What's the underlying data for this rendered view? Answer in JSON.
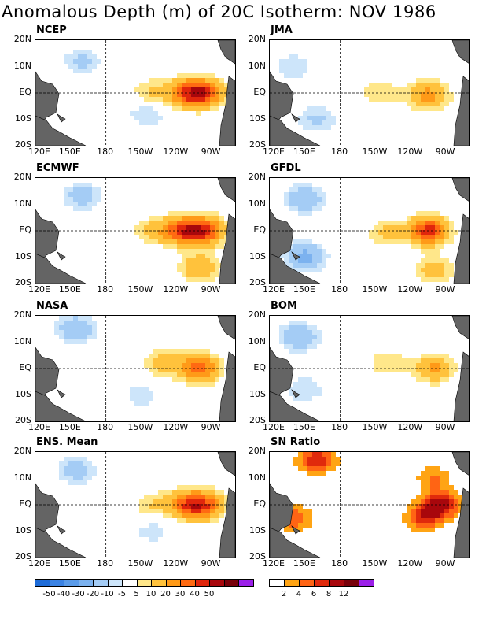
{
  "title": "Anomalous Depth (m) of 20C Isotherm: NOV 1986",
  "axes": {
    "y_ticks": [
      "20N",
      "10N",
      "EQ",
      "10S",
      "20S"
    ],
    "x_ticks": [
      "120E",
      "150E",
      "180",
      "150W",
      "120W",
      "90W"
    ]
  },
  "chart_data": [
    {
      "type": "heatmap",
      "panel_title": "NCEP",
      "hotspots": [
        {
          "lon": -110,
          "lat": 0,
          "value": 35
        },
        {
          "lon": -95,
          "lat": 0,
          "value": 35
        },
        {
          "lon": -140,
          "lat": 0,
          "value": 12
        },
        {
          "lon": 160,
          "lat": 12,
          "value": -12
        },
        {
          "lon": -145,
          "lat": -8,
          "value": -10
        }
      ]
    },
    {
      "type": "heatmap",
      "panel_title": "JMA",
      "hotspots": [
        {
          "lon": -105,
          "lat": -1,
          "value": 25
        },
        {
          "lon": -145,
          "lat": 0,
          "value": 10
        },
        {
          "lon": 160,
          "lat": -10,
          "value": -12
        },
        {
          "lon": 140,
          "lat": 10,
          "value": -10
        }
      ]
    },
    {
      "type": "heatmap",
      "panel_title": "ECMWF",
      "hotspots": [
        {
          "lon": -115,
          "lat": 0,
          "value": 40
        },
        {
          "lon": -95,
          "lat": 0,
          "value": 40
        },
        {
          "lon": -140,
          "lat": 0,
          "value": 12
        },
        {
          "lon": 160,
          "lat": 13,
          "value": -15
        },
        {
          "lon": -100,
          "lat": -14,
          "value": 20
        }
      ]
    },
    {
      "type": "heatmap",
      "panel_title": "GFDL",
      "hotspots": [
        {
          "lon": -105,
          "lat": 0,
          "value": 45
        },
        {
          "lon": -140,
          "lat": -1,
          "value": 12
        },
        {
          "lon": 150,
          "lat": 12,
          "value": -20
        },
        {
          "lon": 150,
          "lat": -10,
          "value": -25
        },
        {
          "lon": -100,
          "lat": -15,
          "value": 15
        }
      ]
    },
    {
      "type": "heatmap",
      "panel_title": "NASA",
      "hotspots": [
        {
          "lon": -100,
          "lat": 0,
          "value": 35
        },
        {
          "lon": -130,
          "lat": 2,
          "value": 15
        },
        {
          "lon": 155,
          "lat": 15,
          "value": -20
        },
        {
          "lon": -150,
          "lat": -10,
          "value": -8
        }
      ]
    },
    {
      "type": "heatmap",
      "panel_title": "BOM",
      "hotspots": [
        {
          "lon": -100,
          "lat": 0,
          "value": 22
        },
        {
          "lon": -140,
          "lat": 2,
          "value": 10
        },
        {
          "lon": 145,
          "lat": 12,
          "value": -20
        },
        {
          "lon": 150,
          "lat": -8,
          "value": -10
        }
      ]
    },
    {
      "type": "heatmap",
      "panel_title": "ENS. Mean",
      "hotspots": [
        {
          "lon": -110,
          "lat": 0,
          "value": 35
        },
        {
          "lon": -95,
          "lat": 0,
          "value": 30
        },
        {
          "lon": -140,
          "lat": 0,
          "value": 10
        },
        {
          "lon": 155,
          "lat": 13,
          "value": -15
        },
        {
          "lon": -140,
          "lat": -10,
          "value": -8
        }
      ]
    },
    {
      "type": "heatmap",
      "panel_title": "SN Ratio",
      "hotspots": [
        {
          "lon": 160,
          "lat": 17,
          "value": 8
        },
        {
          "lon": -95,
          "lat": 0,
          "value": 10
        },
        {
          "lon": -110,
          "lat": -5,
          "value": 6
        },
        {
          "lon": 140,
          "lat": -5,
          "value": 6
        },
        {
          "lon": -100,
          "lat": 10,
          "value": 4
        }
      ]
    }
  ],
  "colorbars": [
    {
      "labels": [
        "-50",
        "-40",
        "-30",
        "-20",
        "-10",
        "-5",
        "5",
        "10",
        "20",
        "30",
        "40",
        "50"
      ],
      "colors": [
        "#1e6cd8",
        "#3b83e4",
        "#5a9be9",
        "#7cb2ef",
        "#a4ccf5",
        "#cde5fa",
        "#ffffff",
        "#ffe78a",
        "#ffc23c",
        "#ff9a18",
        "#ff6a12",
        "#e0260c",
        "#a8070c",
        "#78000a",
        "#9b1fe8"
      ]
    },
    {
      "labels": [
        "2",
        "4",
        "6",
        "8",
        "12"
      ],
      "colors": [
        "#ffffff",
        "#ffa414",
        "#ff6414",
        "#e02a0c",
        "#a8070c",
        "#78000a",
        "#9b1fe8"
      ]
    }
  ],
  "colors": {
    "land": "#646464",
    "frame": "#000000"
  }
}
